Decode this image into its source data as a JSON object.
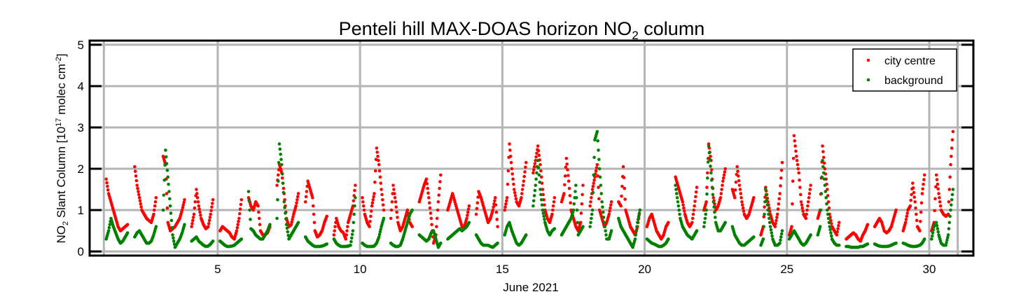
{
  "chart_data": {
    "type": "scatter",
    "title": "Penteli hill MAX-DOAS horizon NO",
    "title_sub": "2",
    "title_tail": " column",
    "xlabel": "June 2021",
    "ylabel_parts": [
      "NO",
      "2",
      " Slant Column [10",
      "17",
      " molec cm",
      "-2",
      "]"
    ],
    "xlim": [
      0.5,
      31.55
    ],
    "ylim": [
      -0.1,
      5.1
    ],
    "xticks": [
      5,
      10,
      15,
      20,
      25,
      30
    ],
    "xgrid": [
      1,
      5,
      10,
      15,
      20,
      25,
      30,
      31
    ],
    "yticks": [
      0,
      1,
      2,
      3,
      4,
      5
    ],
    "grid": true,
    "legend_position": "top-right",
    "sample_hours": [
      2,
      4,
      6,
      8,
      10,
      12,
      14,
      16,
      18,
      20
    ],
    "series": [
      {
        "name": "city centre",
        "color": "#ff0000",
        "values_by_day": [
          [
            1.75,
            1.4,
            1.2,
            1.0,
            0.8,
            0.6,
            0.5,
            0.55,
            0.6,
            0.65
          ],
          [
            2.05,
            1.6,
            1.3,
            1.0,
            0.9,
            0.8,
            0.75,
            0.7,
            0.9,
            1.3
          ],
          [
            2.3,
            2.1,
            0.7,
            0.5,
            0.55,
            0.6,
            0.7,
            0.8,
            1.0,
            1.25
          ],
          [
            0.6,
            0.9,
            1.5,
            1.1,
            0.8,
            0.65,
            0.55,
            0.6,
            0.9,
            1.25
          ],
          [
            0.5,
            0.6,
            0.55,
            0.5,
            0.45,
            0.35,
            0.3,
            0.5,
            0.8,
            1.25
          ],
          [
            1.3,
            1.1,
            1.0,
            1.2,
            1.1,
            0.5,
            0.4,
            0.4,
            0.45,
            0.6
          ],
          [
            1.6,
            2.1,
            1.9,
            1.4,
            0.8,
            0.6,
            0.65,
            0.9,
            1.1,
            1.4
          ],
          [
            1.2,
            1.7,
            1.5,
            1.3,
            0.5,
            0.35,
            0.4,
            0.5,
            0.7,
            0.85
          ],
          [
            0.4,
            0.8,
            0.6,
            0.5,
            0.45,
            0.3,
            0.7,
            0.9,
            1.1,
            1.6
          ],
          [
            1.3,
            0.9,
            0.7,
            0.6,
            1.1,
            1.4,
            2.5,
            2.1,
            1.5,
            1.0
          ],
          [
            0.8,
            1.6,
            1.2,
            0.7,
            0.5,
            0.6,
            0.8,
            1.0,
            0.7,
            0.6
          ],
          [
            1.2,
            1.4,
            1.6,
            1.75,
            1.3,
            0.8,
            0.2,
            0.4,
            1.2,
            1.85
          ],
          [
            1.0,
            1.2,
            1.4,
            1.2,
            1.0,
            0.8,
            0.6,
            0.6,
            0.8,
            1.1
          ],
          [
            0.9,
            1.45,
            1.3,
            1.1,
            0.9,
            0.7,
            0.8,
            1.0,
            1.3,
            0.6
          ],
          [
            1.0,
            1.3,
            2.6,
            2.0,
            1.5,
            1.2,
            1.1,
            1.3,
            1.7,
            2.15
          ],
          [
            1.9,
            2.2,
            2.55,
            2.1,
            1.5,
            1.0,
            0.8,
            0.7,
            0.9,
            1.3
          ],
          [
            1.2,
            1.4,
            2.25,
            1.7,
            1.0,
            0.8,
            0.6,
            0.5,
            0.7,
            1.6
          ],
          [
            1.1,
            1.5,
            1.8,
            2.1,
            1.0,
            0.8,
            0.6,
            0.7,
            0.9,
            1.2
          ],
          [
            1.2,
            1.1,
            2.05,
            1.0,
            0.8,
            0.6,
            0.5,
            0.4,
            0.6,
            1.0
          ],
          [
            0.6,
            0.8,
            0.9,
            0.7,
            0.5,
            0.4,
            0.3,
            0.4,
            0.6,
            0.7
          ],
          [
            1.8,
            1.6,
            1.4,
            1.2,
            0.9,
            0.7,
            0.6,
            0.7,
            1.1,
            1.55
          ],
          [
            1.0,
            1.2,
            2.6,
            2.2,
            1.3,
            1.0,
            1.1,
            1.3,
            1.7,
            2.0
          ],
          [
            1.5,
            1.3,
            2.05,
            1.6,
            1.2,
            0.9,
            0.8,
            0.9,
            1.1,
            1.3
          ],
          [
            0.4,
            0.6,
            1.55,
            1.2,
            0.9,
            0.7,
            0.6,
            0.9,
            1.4,
            2.15
          ],
          [
            0.4,
            0.6,
            2.8,
            2.3,
            1.9,
            1.2,
            0.9,
            0.8,
            1.2,
            1.6
          ],
          [
            0.8,
            1.0,
            2.55,
            2.0,
            1.5,
            0.9,
            0.6,
            0.5,
            0.4,
            0.7
          ],
          [
            0.3,
            0.35,
            0.4,
            0.45,
            0.4,
            0.3,
            0.25,
            0.4,
            0.5,
            0.65
          ],
          [
            0.6,
            0.7,
            0.8,
            0.7,
            0.5,
            0.45,
            0.5,
            0.6,
            0.8,
            1.0
          ],
          [
            0.5,
            0.7,
            1.0,
            1.1,
            1.65,
            1.2,
            0.6,
            0.5,
            1.4,
            1.85
          ],
          [
            0.5,
            0.7,
            1.85,
            1.4,
            1.0,
            0.9,
            0.85,
            0.9,
            2.1,
            2.9
          ]
        ]
      },
      {
        "name": "background",
        "color": "#008000",
        "values_by_day": [
          [
            0.3,
            0.5,
            0.8,
            0.6,
            0.45,
            0.3,
            0.2,
            0.25,
            0.35,
            0.45
          ],
          [
            0.35,
            0.45,
            0.5,
            0.4,
            0.3,
            0.2,
            0.2,
            0.25,
            0.4,
            0.6
          ],
          [
            1.0,
            2.45,
            1.8,
            1.1,
            0.4,
            0.1,
            0.2,
            0.3,
            0.45,
            0.65
          ],
          [
            0.25,
            0.3,
            0.35,
            0.25,
            0.2,
            0.15,
            0.12,
            0.13,
            0.18,
            0.25
          ],
          [
            0.25,
            0.2,
            0.15,
            0.12,
            0.12,
            0.13,
            0.15,
            0.2,
            0.25,
            0.3
          ],
          [
            1.45,
            0.55,
            0.5,
            0.4,
            0.35,
            0.3,
            0.3,
            0.4,
            0.5,
            0.65
          ],
          [
            0.8,
            2.6,
            2.1,
            1.2,
            0.65,
            0.3,
            0.4,
            0.5,
            0.6,
            0.7
          ],
          [
            0.35,
            0.25,
            0.2,
            0.15,
            0.12,
            0.12,
            0.12,
            0.13,
            0.15,
            0.18
          ],
          [
            0.3,
            0.2,
            0.15,
            0.12,
            0.12,
            0.12,
            0.13,
            0.15,
            0.5,
            1.3
          ],
          [
            0.2,
            0.15,
            0.12,
            0.12,
            0.12,
            0.13,
            0.2,
            0.35,
            0.6,
            0.8
          ],
          [
            0.2,
            0.15,
            0.12,
            0.12,
            0.15,
            0.3,
            0.5,
            0.7,
            0.9,
            1.0
          ],
          [
            0.4,
            0.35,
            0.3,
            0.25,
            0.3,
            0.45,
            0.5,
            0.3,
            0.1,
            0.2
          ],
          [
            0.3,
            0.35,
            0.4,
            0.45,
            0.5,
            0.55,
            0.5,
            0.55,
            0.6,
            0.7
          ],
          [
            0.4,
            0.3,
            0.2,
            0.15,
            0.15,
            0.15,
            0.12,
            0.1,
            0.15,
            0.2
          ],
          [
            0.4,
            0.6,
            0.7,
            0.5,
            0.35,
            0.2,
            0.15,
            0.2,
            0.3,
            0.4
          ],
          [
            1.1,
            1.6,
            2.2,
            1.5,
            1.0,
            0.7,
            0.5,
            0.4,
            0.5,
            0.55
          ],
          [
            0.4,
            0.5,
            0.6,
            0.7,
            0.8,
            1.0,
            1.6,
            0.4,
            0.5,
            0.6
          ],
          [
            0.6,
            1.0,
            2.7,
            2.9,
            2.0,
            1.2,
            0.7,
            0.3,
            0.3,
            0.5
          ],
          [
            0.8,
            0.6,
            0.5,
            0.4,
            0.3,
            0.2,
            0.1,
            0.3,
            0.7,
            1.0
          ],
          [
            0.3,
            0.25,
            0.2,
            0.18,
            0.15,
            0.12,
            0.12,
            0.15,
            0.2,
            0.3
          ],
          [
            1.6,
            1.2,
            0.8,
            0.6,
            0.5,
            0.4,
            0.35,
            0.3,
            0.4,
            0.5
          ],
          [
            0.6,
            1.0,
            2.55,
            1.9,
            1.2,
            0.7,
            0.5,
            0.5,
            0.6,
            0.7
          ],
          [
            0.6,
            0.4,
            0.3,
            0.2,
            0.15,
            0.15,
            0.2,
            0.25,
            0.3,
            0.35
          ],
          [
            0.15,
            0.3,
            1.5,
            1.0,
            0.6,
            0.3,
            0.15,
            0.15,
            0.2,
            0.5
          ],
          [
            0.3,
            0.4,
            0.5,
            0.4,
            0.3,
            0.2,
            0.15,
            0.2,
            0.3,
            0.4
          ],
          [
            0.4,
            0.6,
            2.2,
            1.6,
            1.0,
            0.6,
            0.3,
            0.2,
            0.15,
            0.15
          ],
          [
            0.12,
            0.12,
            0.1,
            0.1,
            0.1,
            0.1,
            0.12,
            0.12,
            0.15,
            0.18
          ],
          [
            0.18,
            0.15,
            0.13,
            0.12,
            0.12,
            0.12,
            0.13,
            0.15,
            0.18,
            0.2
          ],
          [
            0.2,
            0.18,
            0.15,
            0.13,
            0.12,
            0.12,
            0.13,
            0.15,
            0.2,
            0.3
          ],
          [
            0.3,
            0.6,
            0.7,
            0.4,
            0.2,
            0.15,
            0.15,
            0.4,
            1.0,
            1.5
          ]
        ]
      }
    ]
  }
}
